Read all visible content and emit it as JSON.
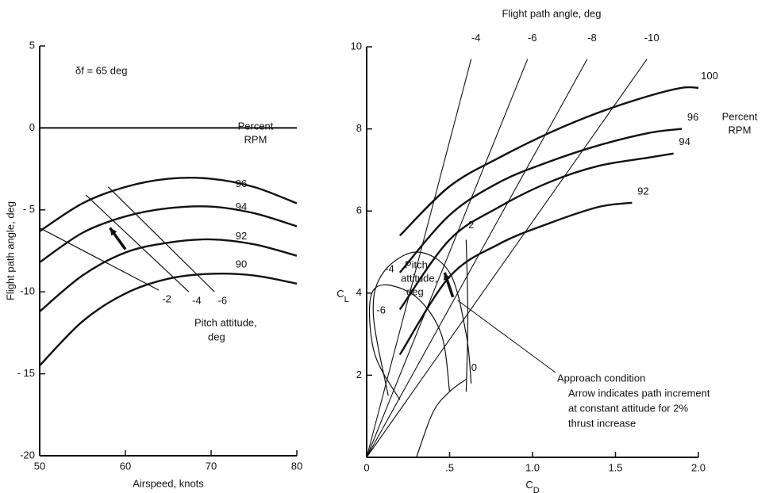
{
  "chart_data": [
    {
      "type": "line",
      "xlabel": "Airspeed, knots",
      "ylabel": "Flight path angle, deg",
      "xlim": [
        50,
        80
      ],
      "xticks": [
        50,
        60,
        70,
        80
      ],
      "ylim": [
        -20,
        5
      ],
      "yticks": [
        5,
        0,
        {
          "value": -5,
          "label": "- 5"
        },
        -10,
        {
          "value": -15,
          "label": "- 15"
        },
        -20
      ],
      "zero_line": true,
      "color": "#111",
      "annotations": [
        "δf = 65 deg",
        "Percent",
        "RPM",
        "Pitch attitude,",
        "deg"
      ],
      "series": [
        {
          "name": "96",
          "x": [
            50,
            55,
            60,
            65,
            70,
            75,
            80
          ],
          "values": [
            -6.3,
            -4.6,
            -3.6,
            -3.1,
            -3.1,
            -3.6,
            -4.6
          ]
        },
        {
          "name": "94",
          "x": [
            50,
            55,
            60,
            65,
            70,
            75,
            80
          ],
          "values": [
            -8.2,
            -6.4,
            -5.4,
            -4.9,
            -4.8,
            -5.2,
            -6.0
          ]
        },
        {
          "name": "92",
          "x": [
            50,
            55,
            60,
            65,
            70,
            75,
            80
          ],
          "values": [
            -11.2,
            -9.0,
            -7.6,
            -7.0,
            -6.8,
            -7.1,
            -7.8
          ]
        },
        {
          "name": "90",
          "x": [
            50,
            55,
            60,
            65,
            70,
            75,
            80
          ],
          "values": [
            -14.5,
            -11.8,
            -10.1,
            -9.2,
            -8.9,
            -9.0,
            -9.5
          ]
        }
      ],
      "pitch_lines": [
        {
          "name": "-2",
          "x": [
            50,
            63.9
          ],
          "values": [
            -6.1,
            -9.9
          ]
        },
        {
          "name": "-4",
          "x": [
            55.4,
            67.4
          ],
          "values": [
            -4.1,
            -10.0
          ]
        },
        {
          "name": "-6",
          "x": [
            58,
            70.4
          ],
          "values": [
            -3.6,
            -10.0
          ]
        }
      ],
      "arrow": {
        "x": [
          60,
          58.2
        ],
        "values": [
          -7.4,
          -6.1
        ]
      }
    },
    {
      "type": "line",
      "title": "Flight path angle, deg",
      "xlabel": {
        "base": "C",
        "sub": "D"
      },
      "ylabel": {
        "base": "C",
        "sub": "L"
      },
      "xlim": [
        0,
        2.0
      ],
      "xticks": [
        0,
        {
          "value": 0.5,
          "label": ".5"
        },
        {
          "value": 1,
          "label": "1.0"
        },
        1.5,
        {
          "value": 2,
          "label": "2.0"
        }
      ],
      "ylim": [
        0,
        10
      ],
      "yticks": [
        2,
        4,
        6,
        8,
        10
      ],
      "color": "#111",
      "annotations": [
        "Percent",
        "RPM",
        "Pitch",
        "attitude,",
        "deg",
        "Approach condition",
        "Arrow indicates path increment",
        "at constant attitude for 2%",
        "thrust increase"
      ],
      "series": [
        {
          "name": "100",
          "x": [
            0.2,
            0.5,
            0.8,
            1.1,
            1.4,
            1.7,
            1.9,
            2.0
          ],
          "values": [
            5.4,
            6.6,
            7.3,
            7.9,
            8.4,
            8.8,
            9.0,
            9.0
          ]
        },
        {
          "name": "96",
          "x": [
            0.2,
            0.5,
            0.8,
            1.1,
            1.4,
            1.7,
            1.9
          ],
          "values": [
            4.5,
            5.9,
            6.7,
            7.2,
            7.6,
            7.9,
            8.0
          ]
        },
        {
          "name": "94",
          "x": [
            0.2,
            0.5,
            0.8,
            1.1,
            1.4,
            1.7,
            1.85
          ],
          "values": [
            3.6,
            5.3,
            6.1,
            6.7,
            7.1,
            7.3,
            7.4
          ]
        },
        {
          "name": "92",
          "x": [
            0.2,
            0.5,
            0.8,
            1.1,
            1.4,
            1.6
          ],
          "values": [
            2.5,
            4.4,
            5.2,
            5.7,
            6.1,
            6.2
          ]
        }
      ],
      "pitch_lines": [
        {
          "name": "-6",
          "x": [
            0.2,
            0.05,
            0.02,
            0.1,
            0.3,
            0.45,
            0.5
          ],
          "values": [
            1.4,
            2.5,
            3.8,
            4.2,
            3.9,
            3.0,
            1.6
          ]
        },
        {
          "name": "-4",
          "x": [
            0.13,
            0.04,
            0.1,
            0.3,
            0.5,
            0.6,
            0.63
          ],
          "values": [
            1.5,
            3.5,
            4.5,
            5.0,
            4.5,
            3.0,
            1.8
          ]
        },
        {
          "name": "-2",
          "x": [
            0.6,
            0.61,
            0.6
          ],
          "values": [
            5.3,
            3.4,
            1.6
          ]
        },
        {
          "name": "0",
          "x": [
            0.3,
            0.4,
            0.5,
            0.6
          ],
          "values": [
            0,
            1.1,
            1.6,
            1.9
          ]
        }
      ],
      "path_lines": [
        {
          "name": "-4",
          "x": [
            0,
            0.63
          ],
          "values": [
            0,
            9.7
          ]
        },
        {
          "name": "-6",
          "x": [
            0,
            0.97
          ],
          "values": [
            0,
            9.7
          ]
        },
        {
          "name": "-8",
          "x": [
            0,
            1.33
          ],
          "values": [
            0,
            9.7
          ]
        },
        {
          "name": "-10",
          "x": [
            0,
            1.69
          ],
          "values": [
            0,
            9.7
          ]
        }
      ],
      "arrow": {
        "x": [
          0.52,
          0.47
        ],
        "values": [
          3.9,
          4.5
        ]
      }
    }
  ]
}
